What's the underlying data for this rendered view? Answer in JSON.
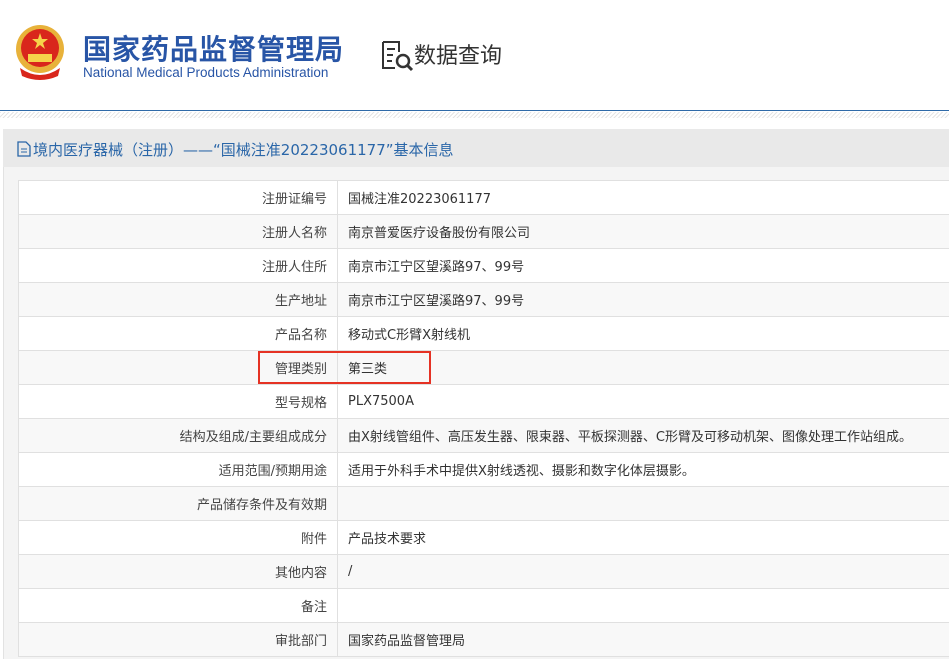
{
  "header": {
    "org_name_cn": "国家药品监督管理局",
    "org_name_en": "National Medical Products Administration",
    "data_query_label": "数据查询",
    "emblem_icon": "national-emblem",
    "query_icon": "document-search-icon"
  },
  "panel": {
    "title": "境内医疗器械（注册）——“国械注准20223061177”基本信息",
    "title_icon": "document-icon"
  },
  "rows": [
    {
      "label": "注册证编号",
      "value": "国械注准20223061177"
    },
    {
      "label": "注册人名称",
      "value": "南京普爱医疗设备股份有限公司"
    },
    {
      "label": "注册人住所",
      "value": "南京市江宁区望溪路97、99号"
    },
    {
      "label": "生产地址",
      "value": "南京市江宁区望溪路97、99号"
    },
    {
      "label": "产品名称",
      "value": "移动式C形臂X射线机"
    },
    {
      "label": "管理类别",
      "value": "第三类"
    },
    {
      "label": "型号规格",
      "value": "PLX7500A"
    },
    {
      "label": "结构及组成/主要组成成分",
      "value": "由X射线管组件、高压发生器、限束器、平板探测器、C形臂及可移动机架、图像处理工作站组成。"
    },
    {
      "label": "适用范围/预期用途",
      "value": "适用于外科手术中提供X射线透视、摄影和数字化体层摄影。"
    },
    {
      "label": "产品储存条件及有效期",
      "value": ""
    },
    {
      "label": "附件",
      "value": "产品技术要求"
    },
    {
      "label": "其他内容",
      "value": "/"
    },
    {
      "label": "备注",
      "value": ""
    },
    {
      "label": "审批部门",
      "value": "国家药品监督管理局"
    }
  ],
  "highlight_color": "#e53224",
  "accent_color": "#2855a6"
}
